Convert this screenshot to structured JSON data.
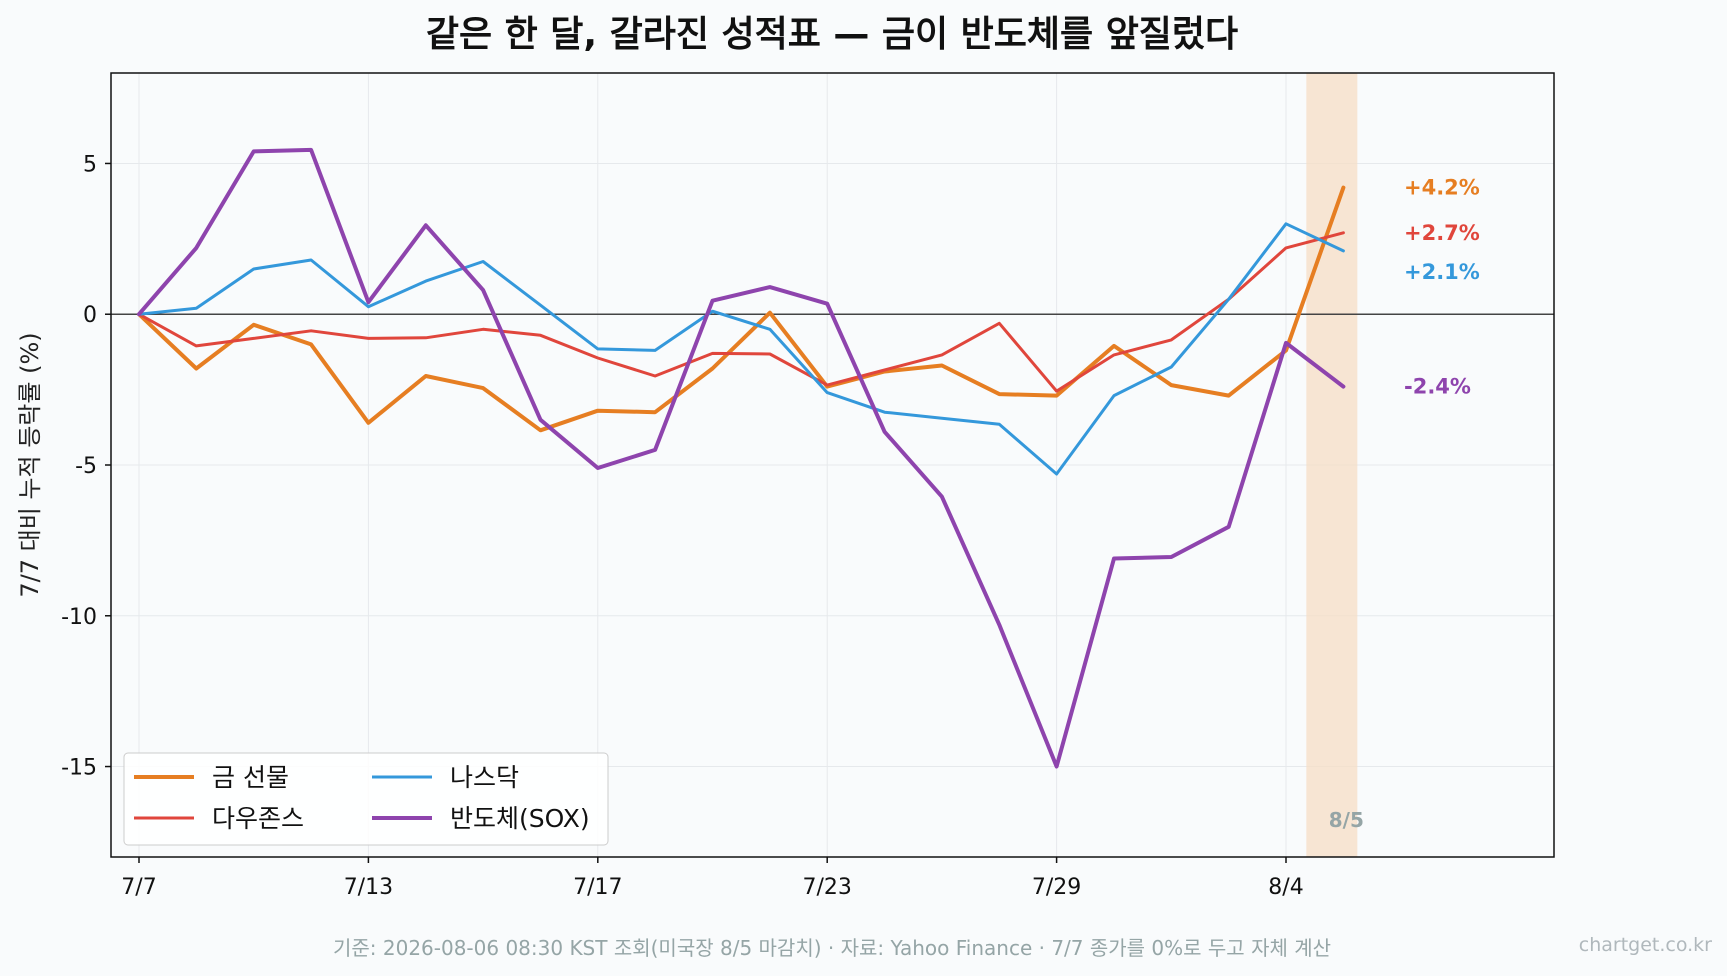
{
  "chart_data": {
    "type": "line",
    "title": "같은 한 달, 갈라진 성적표 — 금이 반도체를 앞질렀다",
    "ylabel": "7/7 대비 누적 등락률 (%)",
    "xlabel": "",
    "ylim": [
      -18,
      8
    ],
    "yticks": [
      5,
      0,
      -5,
      -10,
      -15
    ],
    "ytick_labels": [
      "5",
      "0",
      "-5",
      "-10",
      "-15"
    ],
    "xticks": [
      {
        "index": 0,
        "label": "7/7"
      },
      {
        "index": 4,
        "label": "7/13"
      },
      {
        "index": 8,
        "label": "7/17"
      },
      {
        "index": 12,
        "label": "7/23"
      },
      {
        "index": 16,
        "label": "7/29"
      },
      {
        "index": 20,
        "label": "8/4"
      }
    ],
    "x_dates": [
      "7/7",
      "7/8",
      "7/9",
      "7/10",
      "7/13",
      "7/14",
      "7/15",
      "7/16",
      "7/17",
      "7/20",
      "7/21",
      "7/22",
      "7/23",
      "7/24",
      "7/27",
      "7/28",
      "7/29",
      "7/30",
      "7/31",
      "8/3",
      "8/4",
      "8/5"
    ],
    "grid": true,
    "legend_position": "lower-left",
    "highlight": {
      "index": 21,
      "label": "8/5",
      "color": "#f6ddc6"
    },
    "series": [
      {
        "name": "금 선물",
        "color": "#e67e22",
        "width": 4,
        "values": [
          0,
          -1.8,
          -0.35,
          -1.0,
          -3.6,
          -2.05,
          -2.45,
          -3.85,
          -3.2,
          -3.25,
          -1.8,
          0.05,
          -2.4,
          -1.9,
          -1.7,
          -2.65,
          -2.7,
          -1.05,
          -2.35,
          -2.7,
          -1.2,
          4.2
        ],
        "end_label": "+4.2%"
      },
      {
        "name": "다우존스",
        "color": "#e0463c",
        "width": 3,
        "values": [
          0,
          -1.05,
          -0.8,
          -0.55,
          -0.8,
          -0.78,
          -0.5,
          -0.7,
          -1.45,
          -2.05,
          -1.3,
          -1.32,
          -2.35,
          -1.85,
          -1.35,
          -0.3,
          -2.55,
          -1.35,
          -0.85,
          0.5,
          2.2,
          2.7
        ],
        "end_label": "+2.7%"
      },
      {
        "name": "나스닥",
        "color": "#3498db",
        "width": 3,
        "values": [
          0,
          0.2,
          1.5,
          1.8,
          0.25,
          1.1,
          1.75,
          0.3,
          -1.15,
          -1.2,
          0.1,
          -0.5,
          -2.6,
          -3.25,
          -3.45,
          -3.65,
          -5.3,
          -2.7,
          -1.75,
          0.5,
          3.0,
          2.1
        ],
        "end_label": "+2.1%"
      },
      {
        "name": "반도체(SOX)",
        "color": "#8e44ad",
        "width": 4,
        "values": [
          0,
          2.2,
          5.4,
          5.45,
          0.4,
          2.95,
          0.8,
          -3.5,
          -5.1,
          -4.5,
          0.45,
          0.9,
          0.35,
          -3.9,
          -6.05,
          -10.3,
          -15.0,
          -8.1,
          -8.05,
          -7.05,
          -0.95,
          -2.4
        ],
        "end_label": "-2.4%"
      }
    ]
  },
  "footer": {
    "note": "기준: 2026-08-06 08:30 KST 조회(미국장 8/5 마감치) · 자료: Yahoo Finance · 7/7 종가를 0%로 두고 자체 계산",
    "watermark": "chartget.co.kr"
  }
}
